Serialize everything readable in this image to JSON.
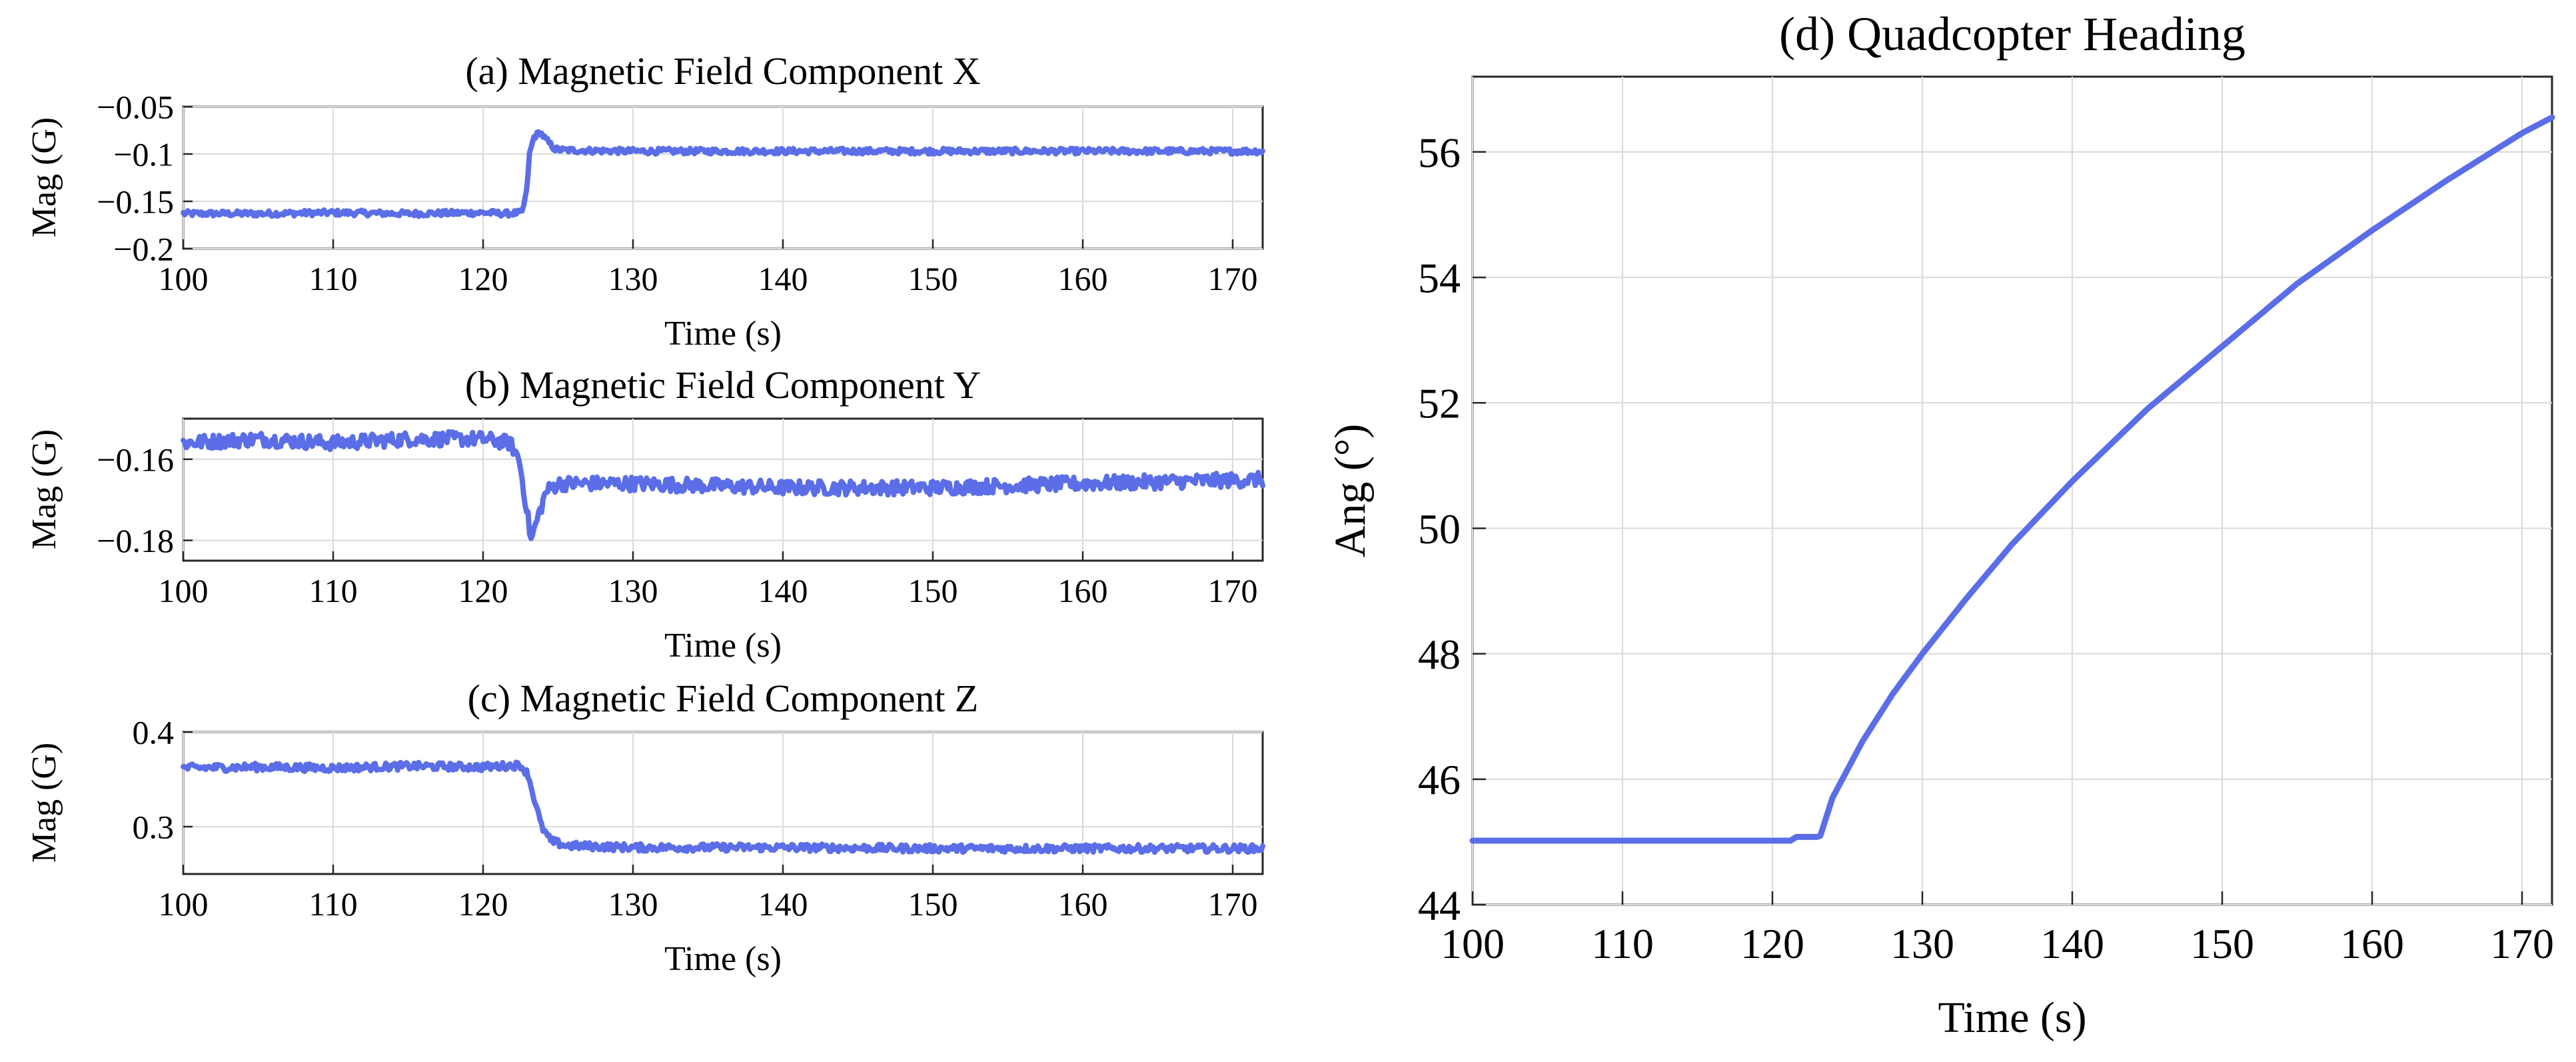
{
  "colors": {
    "series": "#5b6ee8",
    "axis": "#262626",
    "grid": "#dcdcdc",
    "background": "#ffffff"
  },
  "chart_data": [
    {
      "id": "a",
      "type": "line",
      "title": "(a) Magnetic Field Component X",
      "xlabel": "Time (s)",
      "ylabel": "Mag (G)",
      "xlim": [
        100,
        172
      ],
      "ylim": [
        -0.2,
        -0.05
      ],
      "xticks": [
        100,
        110,
        120,
        130,
        140,
        150,
        160,
        170
      ],
      "yticks": [
        -0.2,
        -0.15,
        -0.1,
        -0.05
      ],
      "ytick_labels": [
        "−0.2",
        "−0.15",
        "−0.1",
        "−0.05"
      ],
      "grid": true,
      "series": [
        {
          "name": "Mag X",
          "noise": 0.003,
          "x": [
            100,
            105,
            110,
            115,
            120,
            121.5,
            122.6,
            122.9,
            123.1,
            123.4,
            123.8,
            124.2,
            124.8,
            125.5,
            130,
            140,
            150,
            160,
            172
          ],
          "y": [
            -0.163,
            -0.163,
            -0.162,
            -0.163,
            -0.162,
            -0.163,
            -0.162,
            -0.14,
            -0.1,
            -0.082,
            -0.077,
            -0.085,
            -0.095,
            -0.096,
            -0.097,
            -0.097,
            -0.097,
            -0.097,
            -0.097
          ]
        }
      ]
    },
    {
      "id": "b",
      "type": "line",
      "title": "(b) Magnetic Field Component Y",
      "xlabel": "Time (s)",
      "ylabel": "Mag (G)",
      "xlim": [
        100,
        172
      ],
      "ylim": [
        -0.185,
        -0.15
      ],
      "xticks": [
        100,
        110,
        120,
        130,
        140,
        150,
        160,
        170
      ],
      "yticks": [
        -0.18,
        -0.16
      ],
      "ytick_labels": [
        "−0.18",
        "−0.16"
      ],
      "grid": true,
      "series": [
        {
          "name": "Mag Y",
          "noise": 0.0018,
          "x": [
            100,
            105,
            110,
            115,
            120,
            121.8,
            122.4,
            122.9,
            123.2,
            123.6,
            124.2,
            125,
            130,
            140,
            150,
            160,
            172
          ],
          "y": [
            -0.156,
            -0.155,
            -0.156,
            -0.155,
            -0.155,
            -0.156,
            -0.16,
            -0.172,
            -0.18,
            -0.175,
            -0.168,
            -0.166,
            -0.166,
            -0.167,
            -0.167,
            -0.166,
            -0.165
          ]
        }
      ]
    },
    {
      "id": "c",
      "type": "line",
      "title": "(c) Magnetic Field Component Z",
      "xlabel": "Time (s)",
      "ylabel": "Mag (G)",
      "xlim": [
        100,
        172
      ],
      "ylim": [
        0.25,
        0.4
      ],
      "xticks": [
        100,
        110,
        120,
        130,
        140,
        150,
        160,
        170
      ],
      "yticks": [
        0.3,
        0.4
      ],
      "ytick_labels": [
        "0.3",
        "0.4"
      ],
      "grid": true,
      "series": [
        {
          "name": "Mag Z",
          "noise": 0.004,
          "x": [
            100,
            105,
            110,
            115,
            120,
            122.5,
            123,
            123.4,
            123.9,
            124.5,
            125.5,
            130,
            140,
            150,
            160,
            172
          ],
          "y": [
            0.362,
            0.363,
            0.362,
            0.364,
            0.363,
            0.365,
            0.355,
            0.33,
            0.3,
            0.285,
            0.28,
            0.278,
            0.278,
            0.277,
            0.277,
            0.277
          ]
        }
      ]
    },
    {
      "id": "d",
      "type": "line",
      "title": "(d) Quadcopter Heading",
      "xlabel": "Time (s)",
      "ylabel": "Ang (°)",
      "xlim": [
        100,
        172
      ],
      "ylim": [
        44,
        57.2
      ],
      "xticks": [
        100,
        110,
        120,
        130,
        140,
        150,
        160,
        170
      ],
      "yticks": [
        44,
        46,
        48,
        50,
        52,
        54,
        56
      ],
      "ytick_labels": [
        "44",
        "46",
        "48",
        "50",
        "52",
        "54",
        "56"
      ],
      "grid": true,
      "series": [
        {
          "name": "Heading",
          "noise": 0,
          "x": [
            100,
            110,
            121.3,
            121.5,
            123,
            123.2,
            124,
            126,
            128,
            130,
            133,
            136,
            140,
            145,
            150,
            155,
            160,
            165,
            170,
            172
          ],
          "y": [
            45.02,
            45.02,
            45.02,
            45.08,
            45.08,
            45.1,
            45.7,
            46.6,
            47.35,
            48.0,
            48.9,
            49.75,
            50.75,
            51.9,
            52.9,
            53.9,
            54.75,
            55.55,
            56.3,
            56.55
          ]
        }
      ]
    }
  ]
}
